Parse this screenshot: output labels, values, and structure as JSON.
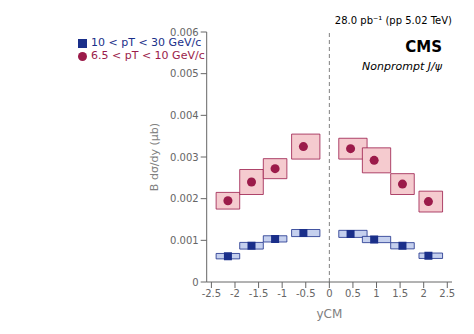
{
  "chart_data": {
    "type": "scatter",
    "x_label": "yCM",
    "y_label": "B dσ/dy (μb)",
    "annotations": [
      "CMS",
      "Nonprompt J/ψ",
      "28.0 pb⁻¹ (pp 5.02 TeV)"
    ],
    "xlim": [
      -2.6,
      2.6
    ],
    "xticks": [
      -2.5,
      -2,
      -1.5,
      -1,
      -0.5,
      0,
      0.5,
      1,
      1.5,
      2,
      2.5
    ],
    "ylim": [
      0,
      0.006
    ],
    "yticks": [
      0,
      0.001,
      0.002,
      0.003,
      0.004,
      0.005,
      0.006
    ],
    "grid": false,
    "legend": "upper left",
    "vlines": [
      0.0
    ],
    "series": [
      {
        "name": "6.5 < pT < 10 GeV/c",
        "color": "#9B1B4A",
        "fill": "#F5CBCF",
        "marker": "circle",
        "x": [
          -2.15,
          -1.65,
          -1.15,
          -0.55,
          0.45,
          0.95,
          1.55,
          2.1
        ],
        "values": [
          0.00195,
          0.0024,
          0.00272,
          0.00325,
          0.0032,
          0.00292,
          0.00235,
          0.00193
        ],
        "box_x_lo": [
          -2.4,
          -1.9,
          -1.4,
          -0.8,
          0.2,
          0.7,
          1.3,
          1.9
        ],
        "box_x_hi": [
          -1.9,
          -1.4,
          -0.9,
          -0.2,
          0.8,
          1.3,
          1.8,
          2.4
        ],
        "box_y_lo": [
          0.00175,
          0.0021,
          0.00248,
          0.00295,
          0.00295,
          0.00262,
          0.0021,
          0.00168
        ],
        "box_y_hi": [
          0.00215,
          0.0027,
          0.00296,
          0.00355,
          0.00345,
          0.00322,
          0.0026,
          0.00218
        ]
      },
      {
        "name": "10 < pT < 30 GeV/c",
        "color": "#1A2F8A",
        "fill": "#C5D0EE",
        "marker": "square",
        "x": [
          -2.15,
          -1.65,
          -1.15,
          -0.55,
          0.45,
          0.95,
          1.55,
          2.1
        ],
        "values": [
          0.00062,
          0.00087,
          0.001035,
          0.001175,
          0.001155,
          0.00102,
          0.00087,
          0.00063
        ],
        "box_x_lo": [
          -2.4,
          -1.9,
          -1.4,
          -0.8,
          0.2,
          0.7,
          1.3,
          1.9
        ],
        "box_x_hi": [
          -1.9,
          -1.4,
          -0.9,
          -0.2,
          0.8,
          1.3,
          1.8,
          2.4
        ],
        "box_y_lo": [
          0.000555,
          0.00079,
          0.00096,
          0.00109,
          0.00107,
          0.000945,
          0.000795,
          0.000565
        ],
        "box_y_hi": [
          0.000685,
          0.00095,
          0.00111,
          0.00126,
          0.00124,
          0.001095,
          0.000945,
          0.000695
        ]
      }
    ]
  }
}
